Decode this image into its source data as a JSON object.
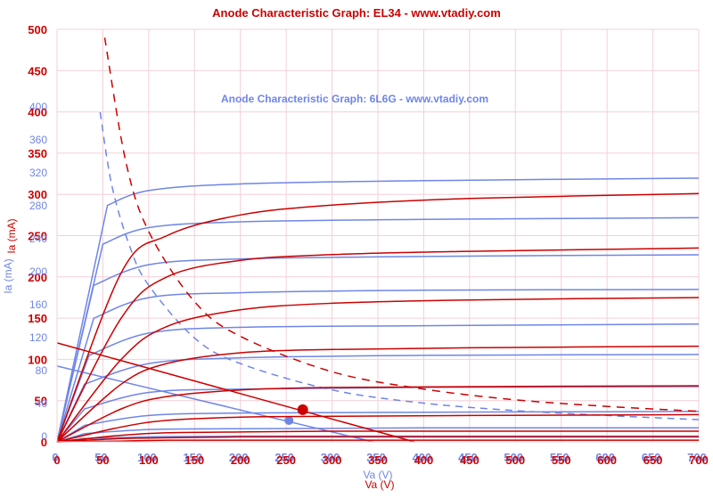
{
  "chart_data": [
    {
      "type": "line",
      "title": "Anode Characteristic Graph: EL34 - www.vtadiy.com",
      "xlabel": "Va (V)",
      "ylabel": "Ia (mA)",
      "xlim": [
        0,
        700
      ],
      "ylim": [
        0,
        500
      ],
      "x_ticks": [
        "0",
        "50",
        "100",
        "150",
        "200",
        "250",
        "300",
        "350",
        "400",
        "450",
        "500",
        "550",
        "600",
        "650",
        "700"
      ],
      "y_ticks": [
        "0",
        "50",
        "100",
        "150",
        "200",
        "250",
        "300",
        "350",
        "400",
        "450",
        "500"
      ],
      "grid": true,
      "color": "#cc0000",
      "series": [
        {
          "style": "solid",
          "x": [
            0,
            70,
            120,
            200,
            300,
            450,
            700
          ],
          "y": [
            0,
            205,
            250,
            275,
            287,
            295,
            301
          ]
        },
        {
          "style": "solid",
          "x": [
            0,
            70,
            120,
            200,
            300,
            450,
            700
          ],
          "y": [
            0,
            150,
            200,
            220,
            227,
            231,
            235
          ]
        },
        {
          "style": "solid",
          "x": [
            0,
            70,
            120,
            200,
            300,
            450,
            700
          ],
          "y": [
            0,
            100,
            140,
            160,
            168,
            172,
            175
          ]
        },
        {
          "style": "solid",
          "x": [
            0,
            70,
            120,
            200,
            300,
            450,
            700
          ],
          "y": [
            0,
            70,
            95,
            108,
            112,
            114,
            116
          ]
        },
        {
          "style": "solid",
          "x": [
            0,
            70,
            120,
            200,
            300,
            450,
            700
          ],
          "y": [
            0,
            40,
            55,
            63,
            66,
            67,
            68
          ]
        },
        {
          "style": "solid",
          "x": [
            0,
            70,
            120,
            200,
            300,
            450,
            700
          ],
          "y": [
            0,
            18,
            26,
            30,
            31,
            32,
            33
          ]
        },
        {
          "style": "solid",
          "x": [
            0,
            70,
            120,
            200,
            300,
            450,
            700
          ],
          "y": [
            0,
            8,
            11,
            12,
            13,
            13,
            13
          ]
        },
        {
          "style": "solid",
          "x": [
            0,
            70,
            120,
            200,
            300,
            450,
            700
          ],
          "y": [
            0,
            4,
            5,
            6,
            6,
            6,
            6
          ]
        },
        {
          "style": "solid",
          "x": [
            0,
            70,
            120,
            200,
            300,
            450,
            700
          ],
          "y": [
            0,
            1,
            2,
            2,
            2,
            2,
            2
          ]
        },
        {
          "style": "load-line",
          "x": [
            0,
            390
          ],
          "y": [
            120,
            0
          ]
        },
        {
          "style": "dashed",
          "x": [
            52,
            75,
            100,
            150,
            200,
            300,
            400,
            500,
            600,
            700
          ],
          "y": [
            490,
            340,
            255,
            170,
            128,
            85,
            64,
            51,
            43,
            37
          ]
        }
      ],
      "operating_point": {
        "x": 268,
        "y": 39
      }
    },
    {
      "type": "line",
      "title": "Anode Characteristic Graph: 6L6G - www.vtadiy.com",
      "xlabel": "Va (V)",
      "ylabel": "Ia (mA)",
      "xlim": [
        0,
        700
      ],
      "ylim": [
        0,
        400
      ],
      "y_ticks": [
        "0",
        "40",
        "80",
        "120",
        "160",
        "200",
        "240",
        "280",
        "320",
        "360",
        "400"
      ],
      "color": "#6f86e6",
      "series": [
        {
          "style": "solid",
          "x": [
            0,
            55,
            100,
            200,
            400,
            700
          ],
          "y": [
            0,
            287,
            305,
            313,
            317,
            320
          ]
        },
        {
          "style": "solid",
          "x": [
            0,
            50,
            100,
            200,
            400,
            700
          ],
          "y": [
            0,
            240,
            260,
            267,
            270,
            272
          ]
        },
        {
          "style": "solid",
          "x": [
            0,
            40,
            100,
            200,
            400,
            700
          ],
          "y": [
            0,
            190,
            215,
            222,
            225,
            227
          ]
        },
        {
          "style": "solid",
          "x": [
            0,
            40,
            100,
            200,
            400,
            700
          ],
          "y": [
            0,
            150,
            175,
            181,
            184,
            185
          ]
        },
        {
          "style": "solid",
          "x": [
            0,
            35,
            100,
            200,
            400,
            700
          ],
          "y": [
            0,
            105,
            132,
            139,
            141,
            143
          ]
        },
        {
          "style": "solid",
          "x": [
            0,
            30,
            100,
            200,
            400,
            700
          ],
          "y": [
            0,
            70,
            95,
            102,
            105,
            106
          ]
        },
        {
          "style": "solid",
          "x": [
            0,
            30,
            100,
            200,
            400,
            700
          ],
          "y": [
            0,
            40,
            60,
            64,
            66,
            67
          ]
        },
        {
          "style": "solid",
          "x": [
            0,
            30,
            100,
            200,
            400,
            700
          ],
          "y": [
            0,
            20,
            32,
            35,
            36,
            37
          ]
        },
        {
          "style": "solid",
          "x": [
            0,
            30,
            100,
            200,
            400,
            700
          ],
          "y": [
            0,
            10,
            15,
            16,
            17,
            17
          ]
        },
        {
          "style": "solid",
          "x": [
            0,
            30,
            100,
            200,
            400,
            700
          ],
          "y": [
            0,
            4,
            6,
            7,
            7,
            7
          ]
        },
        {
          "style": "load-line",
          "x": [
            0,
            345
          ],
          "y": [
            92,
            0
          ]
        },
        {
          "style": "dashed",
          "x": [
            47,
            60,
            80,
            100,
            150,
            200,
            300,
            400,
            500,
            600,
            700
          ],
          "y": [
            400,
            310,
            235,
            190,
            126,
            95,
            63,
            47,
            38,
            32,
            27
          ]
        }
      ],
      "operating_point": {
        "x": 253,
        "y": 26
      }
    }
  ]
}
